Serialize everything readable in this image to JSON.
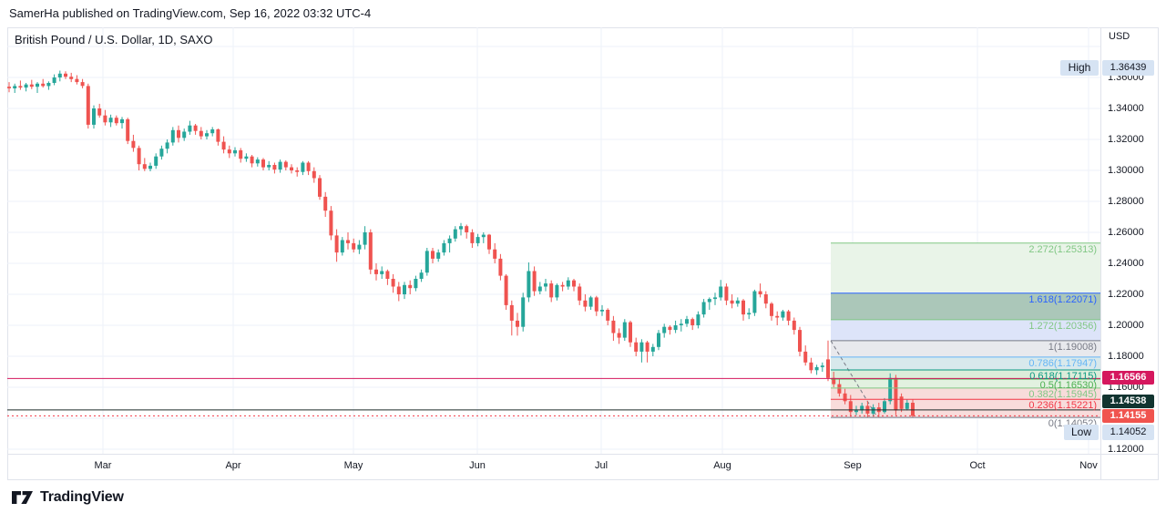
{
  "attribution": "SamerHa published on TradingView.com, Sep 16, 2022 03:32 UTC-4",
  "header": {
    "title": "British Pound / U.S. Dollar, 1D, SAXO"
  },
  "price_axis": {
    "currency": "USD",
    "ticks": [
      "1.36000",
      "1.34000",
      "1.32000",
      "1.30000",
      "1.28000",
      "1.26000",
      "1.24000",
      "1.22000",
      "1.20000",
      "1.18000",
      "1.16000",
      "1.12000"
    ],
    "high_marker": {
      "label": "High",
      "value": "1.36439"
    },
    "low_marker": {
      "label": "Low",
      "value": "1.14052"
    },
    "badges": [
      {
        "value": "1.16566",
        "bg": "#d5175e",
        "fg": "#ffffff"
      },
      {
        "value": "1.14538",
        "bg": "#113430",
        "fg": "#ffffff"
      },
      {
        "value": "1.14155",
        "bg": "#f0544f",
        "fg": "#ffffff"
      }
    ]
  },
  "time_axis": {
    "labels": [
      "Mar",
      "Apr",
      "May",
      "Jun",
      "Jul",
      "Aug",
      "Sep",
      "Oct",
      "Nov"
    ]
  },
  "fib": {
    "levels": [
      {
        "label": "2.272(1.25313)",
        "ratio": "2.272",
        "price": 1.25313,
        "color": "#81c784"
      },
      {
        "label": "1.618(1.22071)",
        "ratio": "1.618",
        "price": 1.22071,
        "color": "#2962ff"
      },
      {
        "label": "1.272(1.20356)",
        "ratio": "1.272",
        "price": 1.20356,
        "color": "#81c784"
      },
      {
        "label": "1(1.19008)",
        "ratio": "1",
        "price": 1.19008,
        "color": "#787b86"
      },
      {
        "label": "0.786(1.17947)",
        "ratio": "0.786",
        "price": 1.17947,
        "color": "#64b5f6"
      },
      {
        "label": "0.618(1.17115)",
        "ratio": "0.618",
        "price": 1.17115,
        "color": "#089981"
      },
      {
        "label": "0.5(1.16530)",
        "ratio": "0.5",
        "price": 1.1653,
        "color": "#4caf50"
      },
      {
        "label": "0.382(1.15945)",
        "ratio": "0.382",
        "price": 1.15945,
        "color": "#81c784"
      },
      {
        "label": "0.236(1.15221)",
        "ratio": "0.236",
        "price": 1.15221,
        "color": "#f23645"
      },
      {
        "label": "0(1.14052)",
        "ratio": "0",
        "price": 1.14052,
        "color": "#787b86"
      }
    ],
    "zone_colors": [
      "#e9f4e8",
      "#abc7b9",
      "#dde4f9",
      "#e8e9ed",
      "#d8e9ec",
      "#dcedda",
      "#e2f1e0",
      "#f8dcdb",
      "#f8dcdb"
    ],
    "trend": {
      "from_price": 1.19008,
      "to_price": 1.14052,
      "color": "#787b86"
    }
  },
  "rays": [
    {
      "price": 1.16566,
      "color": "#d5175e",
      "style": "solid"
    },
    {
      "price": 1.14538,
      "color": "#1c2b29",
      "style": "solid"
    },
    {
      "price": 1.14155,
      "color": "#f23645",
      "style": "dotted"
    }
  ],
  "footer": {
    "brand": "TradingView"
  },
  "colors": {
    "up": "#26a69a",
    "down": "#ef5350",
    "grid": "#eef2f8",
    "axis_text": "#131722",
    "border": "#e0e3eb",
    "marker_bg": "#d6e3f3"
  },
  "chart_data": {
    "type": "candlestick",
    "title": "British Pound / U.S. Dollar, 1D, SAXO",
    "ylabel": "USD",
    "ylim": [
      1.112,
      1.385
    ],
    "x_range": "Feb 2022 - Sep 2022 (daily)",
    "high": 1.36439,
    "low": 1.14052,
    "last": 1.14155,
    "grid_step": 0.02,
    "ohlc": [
      [
        1.354,
        1.357,
        1.3505,
        1.353
      ],
      [
        1.353,
        1.356,
        1.35,
        1.3545
      ],
      [
        1.3545,
        1.358,
        1.352,
        1.3535
      ],
      [
        1.3535,
        1.3565,
        1.351,
        1.3555
      ],
      [
        1.3555,
        1.3585,
        1.3525,
        1.354
      ],
      [
        1.354,
        1.357,
        1.35,
        1.356
      ],
      [
        1.356,
        1.359,
        1.3535,
        1.3545
      ],
      [
        1.3545,
        1.3575,
        1.352,
        1.3565
      ],
      [
        1.3565,
        1.362,
        1.355,
        1.36
      ],
      [
        1.36,
        1.3644,
        1.3575,
        1.3625
      ],
      [
        1.3625,
        1.364,
        1.359,
        1.3605
      ],
      [
        1.3605,
        1.363,
        1.357,
        1.359
      ],
      [
        1.359,
        1.3615,
        1.3555,
        1.357
      ],
      [
        1.357,
        1.359,
        1.353,
        1.3545
      ],
      [
        1.3545,
        1.356,
        1.327,
        1.3295
      ],
      [
        1.3295,
        1.342,
        1.327,
        1.34
      ],
      [
        1.34,
        1.343,
        1.334,
        1.3355
      ],
      [
        1.3355,
        1.339,
        1.329,
        1.331
      ],
      [
        1.331,
        1.336,
        1.328,
        1.334
      ],
      [
        1.334,
        1.3355,
        1.329,
        1.3305
      ],
      [
        1.3305,
        1.3345,
        1.327,
        1.333
      ],
      [
        1.333,
        1.334,
        1.317,
        1.319
      ],
      [
        1.319,
        1.323,
        1.312,
        1.3145
      ],
      [
        1.3145,
        1.316,
        1.3,
        1.304
      ],
      [
        1.304,
        1.308,
        1.2995,
        1.301
      ],
      [
        1.301,
        1.305,
        1.2994,
        1.303
      ],
      [
        1.303,
        1.311,
        1.301,
        1.309
      ],
      [
        1.309,
        1.316,
        1.307,
        1.314
      ],
      [
        1.314,
        1.32,
        1.311,
        1.318
      ],
      [
        1.318,
        1.328,
        1.316,
        1.326
      ],
      [
        1.326,
        1.329,
        1.318,
        1.321
      ],
      [
        1.321,
        1.327,
        1.319,
        1.325
      ],
      [
        1.325,
        1.332,
        1.323,
        1.329
      ],
      [
        1.329,
        1.33,
        1.323,
        1.3255
      ],
      [
        1.3255,
        1.328,
        1.32,
        1.322
      ],
      [
        1.322,
        1.326,
        1.32,
        1.324
      ],
      [
        1.324,
        1.328,
        1.322,
        1.3265
      ],
      [
        1.3265,
        1.327,
        1.316,
        1.3185
      ],
      [
        1.3185,
        1.322,
        1.311,
        1.3135
      ],
      [
        1.3135,
        1.316,
        1.308,
        1.311
      ],
      [
        1.311,
        1.315,
        1.309,
        1.313
      ],
      [
        1.313,
        1.3145,
        1.305,
        1.3075
      ],
      [
        1.3075,
        1.311,
        1.3055,
        1.309
      ],
      [
        1.309,
        1.31,
        1.302,
        1.3045
      ],
      [
        1.3045,
        1.3085,
        1.3025,
        1.307
      ],
      [
        1.307,
        1.308,
        1.3,
        1.302
      ],
      [
        1.302,
        1.306,
        1.3,
        1.3035
      ],
      [
        1.3035,
        1.305,
        1.298,
        1.3005
      ],
      [
        1.3005,
        1.307,
        1.2985,
        1.3055
      ],
      [
        1.3055,
        1.3065,
        1.3,
        1.302
      ],
      [
        1.302,
        1.304,
        1.298,
        1.3
      ],
      [
        1.3,
        1.302,
        1.296,
        1.299
      ],
      [
        1.299,
        1.306,
        1.297,
        1.305
      ],
      [
        1.305,
        1.306,
        1.297,
        1.2995
      ],
      [
        1.2995,
        1.302,
        1.292,
        1.295
      ],
      [
        1.295,
        1.297,
        1.281,
        1.283
      ],
      [
        1.283,
        1.286,
        1.27,
        1.274
      ],
      [
        1.274,
        1.277,
        1.255,
        1.258
      ],
      [
        1.258,
        1.262,
        1.241,
        1.247
      ],
      [
        1.247,
        1.257,
        1.245,
        1.255
      ],
      [
        1.255,
        1.26,
        1.249,
        1.253
      ],
      [
        1.253,
        1.256,
        1.247,
        1.249
      ],
      [
        1.249,
        1.255,
        1.246,
        1.252
      ],
      [
        1.252,
        1.264,
        1.249,
        1.26
      ],
      [
        1.26,
        1.262,
        1.233,
        1.236
      ],
      [
        1.236,
        1.24,
        1.229,
        1.233
      ],
      [
        1.233,
        1.238,
        1.23,
        1.235
      ],
      [
        1.235,
        1.236,
        1.226,
        1.23
      ],
      [
        1.23,
        1.233,
        1.221,
        1.225
      ],
      [
        1.225,
        1.228,
        1.2156,
        1.22
      ],
      [
        1.22,
        1.228,
        1.217,
        1.226
      ],
      [
        1.226,
        1.229,
        1.22,
        1.224
      ],
      [
        1.224,
        1.232,
        1.222,
        1.23
      ],
      [
        1.23,
        1.236,
        1.228,
        1.234
      ],
      [
        1.234,
        1.25,
        1.232,
        1.248
      ],
      [
        1.248,
        1.25,
        1.24,
        1.243
      ],
      [
        1.243,
        1.249,
        1.241,
        1.247
      ],
      [
        1.247,
        1.255,
        1.245,
        1.253
      ],
      [
        1.253,
        1.258,
        1.247,
        1.256
      ],
      [
        1.256,
        1.264,
        1.254,
        1.262
      ],
      [
        1.262,
        1.266,
        1.258,
        1.264
      ],
      [
        1.264,
        1.265,
        1.256,
        1.26
      ],
      [
        1.26,
        1.262,
        1.25,
        1.253
      ],
      [
        1.253,
        1.259,
        1.251,
        1.257
      ],
      [
        1.257,
        1.26,
        1.253,
        1.2585
      ],
      [
        1.2585,
        1.259,
        1.246,
        1.249
      ],
      [
        1.249,
        1.253,
        1.24,
        1.243
      ],
      [
        1.243,
        1.246,
        1.229,
        1.232
      ],
      [
        1.232,
        1.233,
        1.21,
        1.213
      ],
      [
        1.213,
        1.216,
        1.1934,
        1.203
      ],
      [
        1.203,
        1.208,
        1.1933,
        1.199
      ],
      [
        1.199,
        1.221,
        1.196,
        1.218
      ],
      [
        1.218,
        1.2406,
        1.215,
        1.235
      ],
      [
        1.235,
        1.238,
        1.219,
        1.222
      ],
      [
        1.222,
        1.228,
        1.22,
        1.225
      ],
      [
        1.225,
        1.23,
        1.222,
        1.227
      ],
      [
        1.227,
        1.229,
        1.215,
        1.218
      ],
      [
        1.218,
        1.227,
        1.216,
        1.226
      ],
      [
        1.226,
        1.228,
        1.222,
        1.225
      ],
      [
        1.225,
        1.231,
        1.223,
        1.229
      ],
      [
        1.229,
        1.23,
        1.222,
        1.225
      ],
      [
        1.225,
        1.227,
        1.213,
        1.216
      ],
      [
        1.216,
        1.22,
        1.209,
        1.212
      ],
      [
        1.212,
        1.219,
        1.21,
        1.218
      ],
      [
        1.218,
        1.219,
        1.206,
        1.209
      ],
      [
        1.209,
        1.213,
        1.206,
        1.21
      ],
      [
        1.21,
        1.211,
        1.2,
        1.203
      ],
      [
        1.203,
        1.206,
        1.19,
        1.195
      ],
      [
        1.195,
        1.198,
        1.188,
        1.192
      ],
      [
        1.192,
        1.204,
        1.19,
        1.202
      ],
      [
        1.202,
        1.203,
        1.186,
        1.189
      ],
      [
        1.189,
        1.192,
        1.18,
        1.183
      ],
      [
        1.183,
        1.191,
        1.176,
        1.189
      ],
      [
        1.189,
        1.19,
        1.176,
        1.183
      ],
      [
        1.183,
        1.188,
        1.18,
        1.186
      ],
      [
        1.186,
        1.197,
        1.184,
        1.195
      ],
      [
        1.195,
        1.201,
        1.192,
        1.199
      ],
      [
        1.199,
        1.2,
        1.194,
        1.197
      ],
      [
        1.197,
        1.203,
        1.195,
        1.2
      ],
      [
        1.2,
        1.204,
        1.196,
        1.201
      ],
      [
        1.201,
        1.206,
        1.199,
        1.204
      ],
      [
        1.204,
        1.205,
        1.197,
        1.2
      ],
      [
        1.2,
        1.209,
        1.198,
        1.207
      ],
      [
        1.207,
        1.217,
        1.205,
        1.215
      ],
      [
        1.215,
        1.218,
        1.21,
        1.217
      ],
      [
        1.217,
        1.221,
        1.213,
        1.218
      ],
      [
        1.218,
        1.2293,
        1.216,
        1.225
      ],
      [
        1.225,
        1.227,
        1.213,
        1.216
      ],
      [
        1.216,
        1.22,
        1.211,
        1.214
      ],
      [
        1.214,
        1.218,
        1.212,
        1.216
      ],
      [
        1.216,
        1.217,
        1.203,
        1.207
      ],
      [
        1.207,
        1.211,
        1.204,
        1.208
      ],
      [
        1.208,
        1.223,
        1.206,
        1.222
      ],
      [
        1.222,
        1.227,
        1.218,
        1.22
      ],
      [
        1.22,
        1.222,
        1.211,
        1.214
      ],
      [
        1.214,
        1.215,
        1.203,
        1.206
      ],
      [
        1.206,
        1.209,
        1.2,
        1.205
      ],
      [
        1.205,
        1.21,
        1.203,
        1.209
      ],
      [
        1.209,
        1.21,
        1.2,
        1.203
      ],
      [
        1.203,
        1.205,
        1.194,
        1.197
      ],
      [
        1.197,
        1.199,
        1.18,
        1.183
      ],
      [
        1.183,
        1.187,
        1.174,
        1.176
      ],
      [
        1.176,
        1.179,
        1.169,
        1.171
      ],
      [
        1.171,
        1.1745,
        1.168,
        1.173
      ],
      [
        1.173,
        1.176,
        1.17,
        1.174
      ],
      [
        1.178,
        1.1901,
        1.164,
        1.166
      ],
      [
        1.166,
        1.17,
        1.16,
        1.162
      ],
      [
        1.162,
        1.165,
        1.154,
        1.156
      ],
      [
        1.156,
        1.159,
        1.149,
        1.151
      ],
      [
        1.151,
        1.155,
        1.141,
        1.144
      ],
      [
        1.144,
        1.148,
        1.142,
        1.145
      ],
      [
        1.145,
        1.15,
        1.143,
        1.148
      ],
      [
        1.148,
        1.151,
        1.1406,
        1.143
      ],
      [
        1.143,
        1.149,
        1.141,
        1.147
      ],
      [
        1.147,
        1.15,
        1.14052,
        1.144
      ],
      [
        1.144,
        1.153,
        1.143,
        1.151
      ],
      [
        1.151,
        1.169,
        1.149,
        1.166
      ],
      [
        1.166,
        1.168,
        1.142,
        1.145
      ],
      [
        1.154,
        1.156,
        1.144,
        1.146
      ],
      [
        1.146,
        1.152,
        1.145,
        1.15
      ],
      [
        1.15,
        1.152,
        1.1406,
        1.14155
      ]
    ]
  }
}
